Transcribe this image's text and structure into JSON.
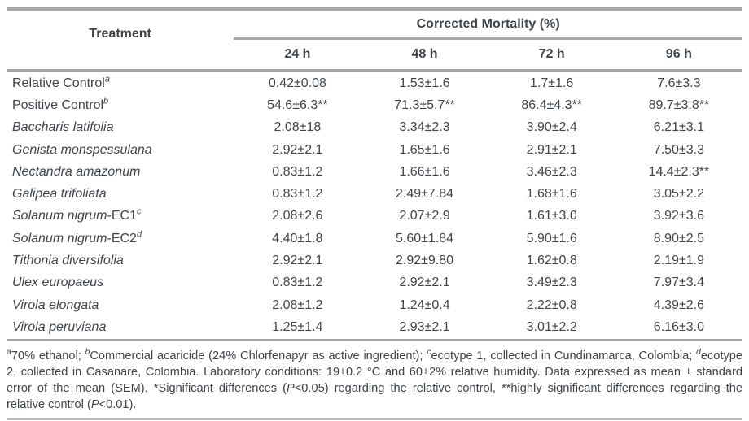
{
  "table": {
    "treatment_header": "Treatment",
    "group_header": "Corrected Mortality (%)",
    "time_columns": [
      "24 h",
      "48 h",
      "72 h",
      "96 h"
    ],
    "rows": [
      {
        "italic_text": "",
        "regular_text": "Relative Control",
        "marker": "a",
        "values": [
          "0.42±0.08",
          "1.53±1.6",
          "1.7±1.6",
          "7.6±3.3"
        ]
      },
      {
        "italic_text": "",
        "regular_text": "Positive Control",
        "marker": "b",
        "values": [
          "54.6±6.3**",
          "71.3±5.7**",
          "86.4±4.3**",
          "89.7±3.8**"
        ]
      },
      {
        "italic_text": "Baccharis latifolia",
        "regular_text": "",
        "marker": "",
        "values": [
          "2.08±18",
          "3.34±2.3",
          "3.90±2.4",
          "6.21±3.1"
        ]
      },
      {
        "italic_text": "Genista monspessulana",
        "regular_text": "",
        "marker": "",
        "values": [
          "2.92±2.1",
          "1.65±1.6",
          "2.91±2.1",
          "7.50±3.3"
        ]
      },
      {
        "italic_text": "Nectandra amazonum",
        "regular_text": "",
        "marker": "",
        "values": [
          "0.83±1.2",
          "1.66±1.6",
          "3.46±2.3",
          "14.4±2.3**"
        ]
      },
      {
        "italic_text": "Galipea trifoliata",
        "regular_text": "",
        "marker": "",
        "values": [
          "0.83±1.2",
          "2.49±7.84",
          "1.68±1.6",
          "3.05±2.2"
        ]
      },
      {
        "italic_text": "Solanum nigrum",
        "regular_text": "-EC1",
        "marker": "c",
        "values": [
          "2.08±2.6",
          "2.07±2.9",
          "1.61±3.0",
          "3.92±3.6"
        ]
      },
      {
        "italic_text": "Solanum nigrum",
        "regular_text": "-EC2",
        "marker": "d",
        "values": [
          "4.40±1.8",
          "5.60±1.84",
          "5.90±1.6",
          "8.90±2.5"
        ]
      },
      {
        "italic_text": "Tithonia diversifolia",
        "regular_text": "",
        "marker": "",
        "values": [
          "2.92±2.1",
          "2.92±9.80",
          "1.62±0.8",
          "2.19±1.9"
        ]
      },
      {
        "italic_text": "Ulex europaeus",
        "regular_text": "",
        "marker": "",
        "values": [
          "0.83±1.2",
          "2.92±2.1",
          "3.49±2.3",
          "7.97±3.4"
        ]
      },
      {
        "italic_text": "Virola elongata",
        "regular_text": "",
        "marker": "",
        "values": [
          "2.08±1.2",
          "1.24±0.4",
          "2.22±0.8",
          "4.39±2.6"
        ]
      },
      {
        "italic_text": "Virola peruviana",
        "regular_text": "",
        "marker": "",
        "values": [
          "1.25±1.4",
          "2.93±2.1",
          "3.01±2.2",
          "6.16±3.0"
        ]
      }
    ]
  },
  "footnote": {
    "parts": {
      "marker_a": "a",
      "text_a": "70% ethanol; ",
      "marker_b": "b",
      "text_b": "Commercial acaricide (24% Chlorfenapyr as active ingredient); ",
      "marker_c": "c",
      "text_c": "ecotype 1, collected in Cundinamarca, Colombia; ",
      "marker_d": "d",
      "text_d": "ecotype 2, collected in Casanare, Colombia. Laboratory conditions: 19±0.2 °C and 60±2% relative humidity. Data expressed as mean ± standard error of the mean (SEM). *Significant differences (",
      "p1": "P",
      "text_e": "<0.05) regarding the relative control, **highly significant differences regarding the relative control (",
      "p2": "P",
      "text_f": "<0.01)."
    }
  },
  "colors": {
    "text": "#3f4449",
    "rule": "#a5a8ab",
    "rule_light": "#b9bcbe"
  }
}
